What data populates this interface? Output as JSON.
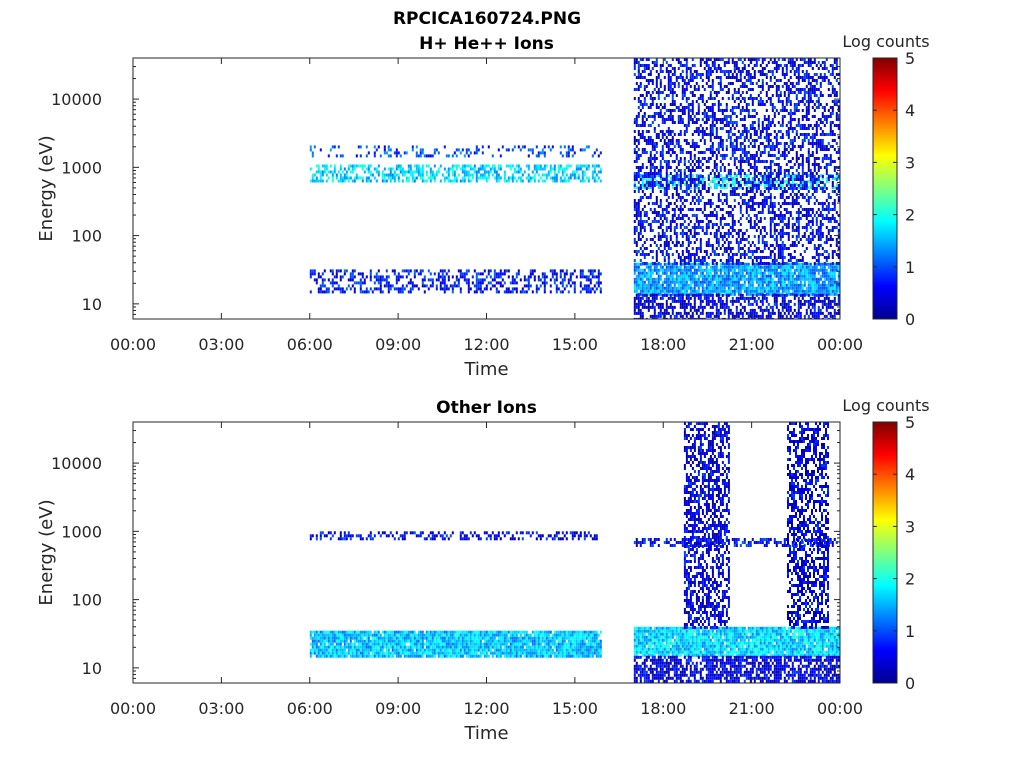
{
  "figure_title": "RPCICA160724.PNG",
  "colors": {
    "colormap": [
      "#00008f",
      "#0000ff",
      "#0080ff",
      "#00ffff",
      "#80ff80",
      "#ffff00",
      "#ff8000",
      "#ff0000",
      "#800000"
    ],
    "axis": "#262626",
    "background": "#ffffff"
  },
  "chart_data": [
    {
      "type": "heatmap",
      "title": "H+ He++ Ions",
      "xlabel": "Time",
      "ylabel": "Energy (eV)",
      "x_ticks": [
        "00:00",
        "03:00",
        "06:00",
        "09:00",
        "12:00",
        "15:00",
        "18:00",
        "21:00",
        "00:00"
      ],
      "xlim_hours": [
        0,
        24
      ],
      "y_scale": "log",
      "y_ticks": [
        "10",
        "100",
        "1000",
        "10000"
      ],
      "ylim_eV": [
        6,
        40000
      ],
      "colorbar": {
        "label": "Log counts",
        "ticks": [
          "0",
          "1",
          "2",
          "3",
          "4",
          "5"
        ],
        "range": [
          0,
          5
        ]
      },
      "data_intervals_hours": [
        [
          6.0,
          15.9
        ],
        [
          17.0,
          24.0
        ]
      ],
      "features": [
        {
          "t_start": 6.0,
          "t_end": 15.9,
          "energy_eV": [
            600,
            1100
          ],
          "log_counts": 1.7,
          "density": 0.55
        },
        {
          "t_start": 6.0,
          "t_end": 15.9,
          "energy_eV": [
            1500,
            2100
          ],
          "log_counts": 1.0,
          "density": 0.25
        },
        {
          "t_start": 6.0,
          "t_end": 15.9,
          "energy_eV": [
            15,
            32
          ],
          "log_counts": 0.7,
          "density": 0.45
        },
        {
          "t_start": 17.0,
          "t_end": 24.0,
          "energy_eV": [
            500,
            800
          ],
          "log_counts": 1.9,
          "density": 0.55
        },
        {
          "t_start": 17.0,
          "t_end": 24.0,
          "energy_eV": [
            14,
            40
          ],
          "log_counts": 1.4,
          "density": 0.9
        },
        {
          "t_start": 17.0,
          "t_end": 24.0,
          "energy_eV": [
            6,
            14
          ],
          "log_counts": 0.5,
          "density": 0.6
        },
        {
          "t_start": 17.0,
          "t_end": 24.0,
          "energy_eV": [
            40,
            40000
          ],
          "log_counts": 0.6,
          "density": 0.45
        }
      ]
    },
    {
      "type": "heatmap",
      "title": "Other Ions",
      "xlabel": "Time",
      "ylabel": "Energy (eV)",
      "x_ticks": [
        "00:00",
        "03:00",
        "06:00",
        "09:00",
        "12:00",
        "15:00",
        "18:00",
        "21:00",
        "00:00"
      ],
      "xlim_hours": [
        0,
        24
      ],
      "y_scale": "log",
      "y_ticks": [
        "10",
        "100",
        "1000",
        "10000"
      ],
      "ylim_eV": [
        6,
        40000
      ],
      "colorbar": {
        "label": "Log counts",
        "ticks": [
          "0",
          "1",
          "2",
          "3",
          "4",
          "5"
        ],
        "range": [
          0,
          5
        ]
      },
      "data_intervals_hours": [
        [
          6.0,
          15.9
        ],
        [
          17.0,
          24.0
        ]
      ],
      "features": [
        {
          "t_start": 6.0,
          "t_end": 15.9,
          "energy_eV": [
            15,
            35
          ],
          "log_counts": 1.6,
          "density": 0.95
        },
        {
          "t_start": 6.0,
          "t_end": 15.9,
          "energy_eV": [
            800,
            1000
          ],
          "log_counts": 0.6,
          "density": 0.4
        },
        {
          "t_start": 17.0,
          "t_end": 24.0,
          "energy_eV": [
            15,
            40
          ],
          "log_counts": 1.7,
          "density": 0.95
        },
        {
          "t_start": 17.0,
          "t_end": 24.0,
          "energy_eV": [
            6,
            15
          ],
          "log_counts": 0.5,
          "density": 0.7
        },
        {
          "t_start": 17.0,
          "t_end": 24.0,
          "energy_eV": [
            600,
            800
          ],
          "log_counts": 0.7,
          "density": 0.5
        },
        {
          "t_start": 18.7,
          "t_end": 20.2,
          "energy_eV": [
            40,
            40000
          ],
          "log_counts": 0.5,
          "density": 0.55
        },
        {
          "t_start": 22.2,
          "t_end": 23.6,
          "energy_eV": [
            40,
            40000
          ],
          "log_counts": 0.5,
          "density": 0.55
        }
      ]
    }
  ]
}
